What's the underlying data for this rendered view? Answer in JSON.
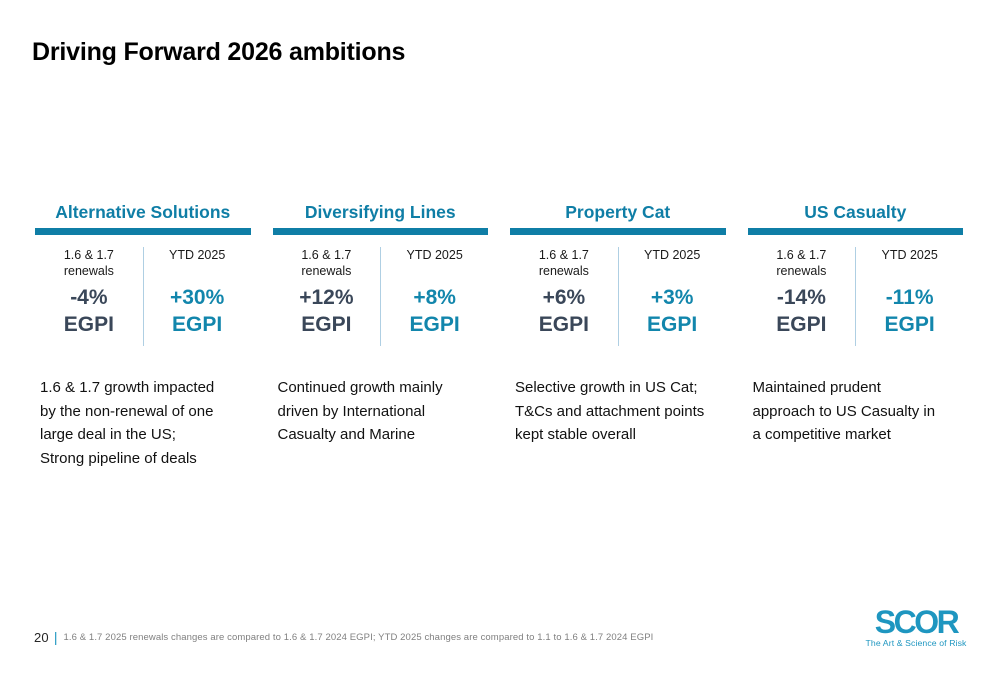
{
  "slide": {
    "title": "Driving Forward 2026 ambitions",
    "columns": [
      {
        "header": "Alternative Solutions",
        "renewals_label": "1.6 & 1.7\nrenewals",
        "ytd_label": "YTD 2025",
        "renewals_value": "-4%",
        "renewals_unit": "EGPI",
        "ytd_value": "+30%",
        "ytd_unit": "EGPI",
        "description": "1.6 & 1.7 growth impacted\nby the non-renewal of one\nlarge deal in the US;\nStrong pipeline of deals"
      },
      {
        "header": "Diversifying Lines",
        "renewals_label": "1.6 & 1.7\nrenewals",
        "ytd_label": "YTD 2025",
        "renewals_value": "+12%",
        "renewals_unit": "EGPI",
        "ytd_value": "+8%",
        "ytd_unit": "EGPI",
        "description": "Continued growth mainly\ndriven by International\nCasualty and Marine"
      },
      {
        "header": "Property Cat",
        "renewals_label": "1.6 & 1.7\nrenewals",
        "ytd_label": "YTD 2025",
        "renewals_value": "+6%",
        "renewals_unit": "EGPI",
        "ytd_value": "+3%",
        "ytd_unit": "EGPI",
        "description": "Selective growth in US Cat;\nT&Cs and attachment points\nkept stable overall"
      },
      {
        "header": "US Casualty",
        "renewals_label": "1.6 & 1.7\nrenewals",
        "ytd_label": "YTD 2025",
        "renewals_value": "-14%",
        "renewals_unit": "EGPI",
        "ytd_value": "-11%",
        "ytd_unit": "EGPI",
        "description": "Maintained prudent\napproach to US Casualty in\na competitive market"
      }
    ],
    "footer": {
      "page_number": "20",
      "separator": "|",
      "note": "1.6 & 1.7 2025 renewals changes are compared to 1.6 & 1.7 2024 EGPI; YTD 2025 changes are compared to 1.1 to 1.6 & 1.7 2024 EGPI"
    },
    "logo": {
      "text": "SCOR",
      "tagline": "The Art & Science of Risk"
    },
    "colors": {
      "teal": "#0f7ea6",
      "teal_value": "#1286ac",
      "navy": "#3a4759",
      "divider": "#afcfe3",
      "footnote_gray": "#808080",
      "logo_teal": "#1e96c0"
    }
  }
}
